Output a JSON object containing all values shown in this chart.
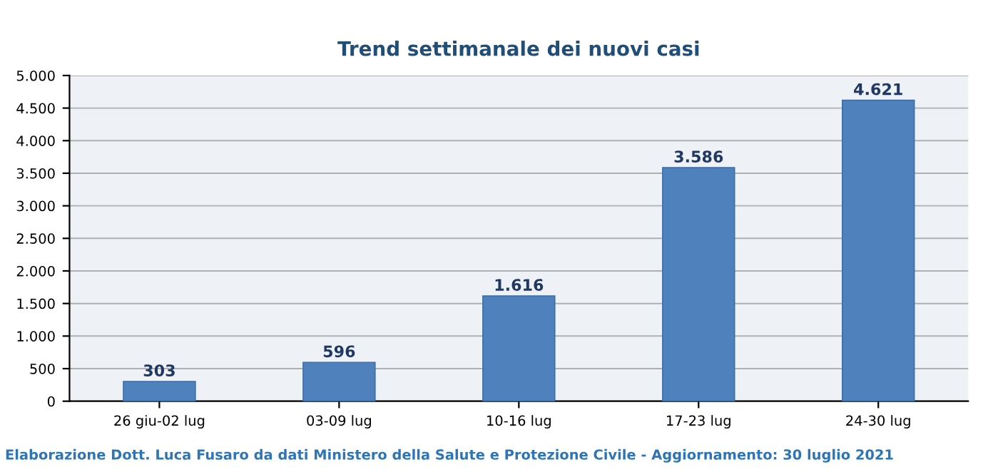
{
  "chart_data": {
    "type": "bar",
    "title": "Trend settimanale dei nuovi casi",
    "categories": [
      "26 giu-02 lug",
      "03-09 lug",
      "10-16 lug",
      "17-23 lug",
      "24-30 lug"
    ],
    "values": [
      303,
      596,
      1616,
      3586,
      4621
    ],
    "value_labels": [
      "303",
      "596",
      "1.616",
      "3.586",
      "4.621"
    ],
    "color": "#4f81bd",
    "ylim": [
      0,
      5000
    ],
    "yticks": [
      0,
      500,
      {
        "value": 1000,
        "label": "1.000"
      },
      {
        "value": 1500,
        "label": "1.500"
      },
      {
        "value": 2000,
        "label": "2.000"
      },
      {
        "value": 2500,
        "label": "2.500"
      },
      {
        "value": 3000,
        "label": "3.000"
      },
      {
        "value": 3500,
        "label": "3.500"
      },
      {
        "value": 4000,
        "label": "4.000"
      },
      {
        "value": 4500,
        "label": "4.500"
      },
      {
        "value": 5000,
        "label": "5.000"
      }
    ],
    "grid": "y",
    "annotations": [
      "Elaborazione Dott. Luca Fusaro da dati Ministero della Salute e Protezione Civile - Aggiornamento: 30 luglio 2021"
    ]
  }
}
